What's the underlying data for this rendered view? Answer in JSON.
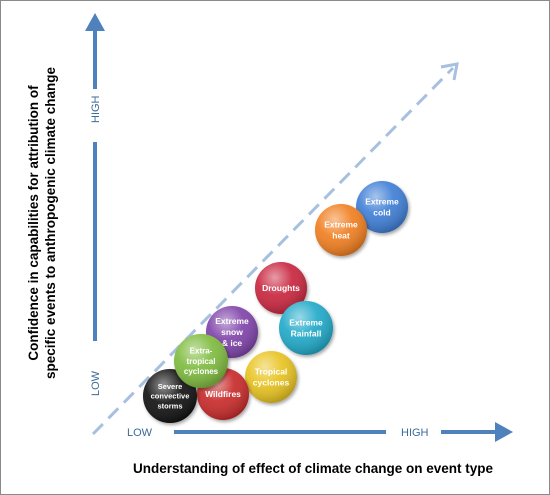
{
  "x_axis": {
    "title": "Understanding of effect of climate change on event type",
    "low_label": "LOW",
    "high_label": "HIGH"
  },
  "y_axis": {
    "title_line1": "Confidence in capabilities for attribution of",
    "title_line2": "specific events to anthropogenic climate change",
    "low_label": "LOW",
    "high_label": "HIGH"
  },
  "colors": {
    "axis_arrow": "#4f81bd",
    "diagonal": "#a8c0e0"
  },
  "events": [
    {
      "id": "extreme-cold",
      "lines": [
        "Extreme",
        "cold"
      ],
      "color": "#3a7bd5"
    },
    {
      "id": "extreme-heat",
      "lines": [
        "Extreme",
        "heat"
      ],
      "color": "#f07b1c"
    },
    {
      "id": "droughts",
      "lines": [
        "Droughts"
      ],
      "color": "#c8243a"
    },
    {
      "id": "extreme-rainfall",
      "lines": [
        "Extreme",
        "Rainfall"
      ],
      "color": "#1fa8c8"
    },
    {
      "id": "extreme-snow-ice",
      "lines": [
        "Extreme",
        "snow",
        "& ice"
      ],
      "color": "#7d3fa8"
    },
    {
      "id": "tropical-cyclones",
      "lines": [
        "Tropical",
        "cyclones"
      ],
      "color": "#e8c21e"
    },
    {
      "id": "wildfires",
      "lines": [
        "Wildfires"
      ],
      "color": "#c82828"
    },
    {
      "id": "extra-tropical-cyclones",
      "lines": [
        "Extra-",
        "tropical",
        "cyclones"
      ],
      "color": "#7cba3a"
    },
    {
      "id": "severe-convective-storms",
      "lines": [
        "Severe",
        "convective",
        "storms"
      ],
      "color": "#0a0a0a"
    }
  ]
}
